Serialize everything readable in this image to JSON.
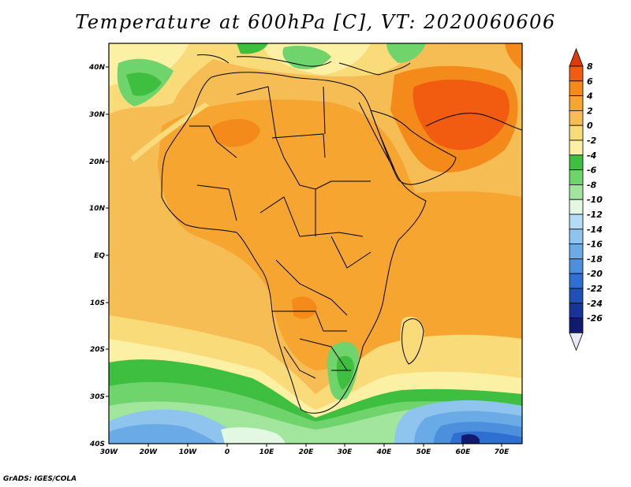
{
  "title": "Temperature at 600hPa [C], VT: 2020060606",
  "credit": "GrADS: IGES/COLA",
  "map": {
    "lat_labels": [
      "40N",
      "30N",
      "20N",
      "10N",
      "EQ",
      "10S",
      "20S",
      "30S",
      "40S"
    ],
    "lon_labels": [
      "30W",
      "20W",
      "10W",
      "0",
      "10E",
      "20E",
      "30E",
      "40E",
      "50E",
      "60E",
      "70E"
    ],
    "lon_range": [
      -30,
      75
    ],
    "lat_range": [
      -40,
      45
    ]
  },
  "colorbar": {
    "labels": [
      "8",
      "6",
      "4",
      "2",
      "0",
      "-2",
      "-4",
      "-6",
      "-8",
      "-10",
      "-12",
      "-14",
      "-16",
      "-18",
      "-20",
      "-22",
      "-24",
      "-26"
    ],
    "colors": [
      "#e03a08",
      "#f25c10",
      "#f38a1a",
      "#f5a530",
      "#f6bd55",
      "#f9db7a",
      "#fbf0a4",
      "#3fbf3f",
      "#6fd46c",
      "#a2e59c",
      "#e2f8e2",
      "#b4dcf6",
      "#8ec4ee",
      "#6aaae6",
      "#4c8fdd",
      "#2f6fd1",
      "#1f4fb7",
      "#173596",
      "#101a6e",
      "#e8e8f8"
    ]
  }
}
